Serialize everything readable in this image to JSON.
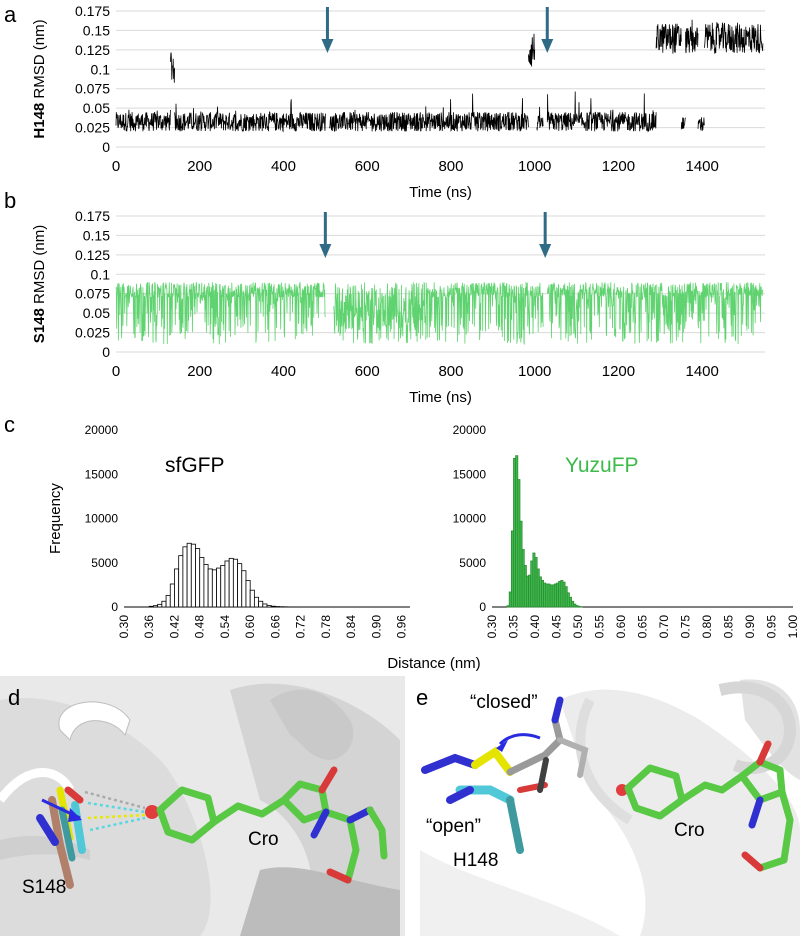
{
  "panels": {
    "a": {
      "letter": "a"
    },
    "b": {
      "letter": "b"
    },
    "c": {
      "letter": "c"
    },
    "d": {
      "letter": "d",
      "labels": {
        "s148": "S148",
        "cro": "Cro"
      }
    },
    "e": {
      "letter": "e",
      "labels": {
        "closed": "“closed”",
        "open": "“open”",
        "h148": "H148",
        "cro": "Cro"
      }
    }
  },
  "colors": {
    "h148_trace": "#000000",
    "s148_trace": "#5fd36f",
    "yuzufp": "#3dbb4a",
    "arrow": "#2f6b87",
    "grid": "#d9d9d9"
  },
  "chart_data": [
    {
      "type": "line",
      "panel": "a",
      "ylabel_bold": "H148",
      "ylabel_rest": " RMSD (nm)",
      "xlabel": "Time (ns)",
      "xlim": [
        0,
        1550
      ],
      "ylim": [
        0,
        0.175
      ],
      "xticks": [
        "0",
        "200",
        "400",
        "600",
        "800",
        "1000",
        "1200",
        "1400"
      ],
      "yticks": [
        "0",
        "0.025",
        "0.05",
        "0.075",
        "0.1",
        "0.125",
        "0.15",
        "0.175"
      ],
      "grid": "horizontal",
      "arrows_x": [
        505,
        1030
      ],
      "series": [
        {
          "color": "#000000",
          "segments": [
            {
              "x": [
                0,
                130
              ],
              "base": 0.02,
              "high": 0.045
            },
            {
              "x": [
                130,
                140
              ],
              "base": 0.08,
              "high": 0.13
            },
            {
              "x": [
                140,
                500
              ],
              "base": 0.02,
              "high": 0.045
            },
            {
              "x": [
                510,
                985
              ],
              "base": 0.02,
              "high": 0.045
            },
            {
              "x": [
                985,
                1000
              ],
              "base": 0.1,
              "high": 0.15
            },
            {
              "x": [
                1005,
                1020
              ],
              "base": 0.02,
              "high": 0.04
            },
            {
              "x": [
                1030,
                1290
              ],
              "base": 0.02,
              "high": 0.045
            },
            {
              "x": [
                1290,
                1350
              ],
              "base": 0.12,
              "high": 0.16
            },
            {
              "x": [
                1350,
                1360
              ],
              "base": 0.02,
              "high": 0.04
            },
            {
              "x": [
                1360,
                1390
              ],
              "base": 0.12,
              "high": 0.155
            },
            {
              "x": [
                1390,
                1405
              ],
              "base": 0.02,
              "high": 0.04
            },
            {
              "x": [
                1405,
                1545
              ],
              "base": 0.12,
              "high": 0.16
            }
          ]
        }
      ]
    },
    {
      "type": "line",
      "panel": "b",
      "ylabel_bold": "S148",
      "ylabel_rest": " RMSD (nm)",
      "xlabel": "Time (ns)",
      "xlim": [
        0,
        1550
      ],
      "ylim": [
        0,
        0.175
      ],
      "xticks": [
        "0",
        "200",
        "400",
        "600",
        "800",
        "1000",
        "1200",
        "1400"
      ],
      "yticks": [
        "0",
        "0.025",
        "0.05",
        "0.075",
        "0.1",
        "0.125",
        "0.15",
        "0.175"
      ],
      "grid": "horizontal",
      "arrows_x": [
        500,
        1025
      ],
      "series": [
        {
          "color": "#5fd36f",
          "segments": [
            {
              "x": [
                0,
                500
              ],
              "base": 0.075,
              "low": 0.01,
              "high": 0.09
            },
            {
              "x": [
                520,
                740
              ],
              "base": 0.05,
              "low": 0.01,
              "high": 0.09
            },
            {
              "x": [
                740,
                1020
              ],
              "base": 0.075,
              "low": 0.01,
              "high": 0.09
            },
            {
              "x": [
                1030,
                1545
              ],
              "base": 0.075,
              "low": 0.01,
              "high": 0.09
            }
          ]
        }
      ]
    },
    {
      "type": "bar",
      "panel": "c-left",
      "title": "sfGFP",
      "ylabel": "Frequency",
      "xlim": [
        0.3,
        0.98
      ],
      "ylim": [
        0,
        20000
      ],
      "yticks": [
        "0",
        "5000",
        "10000",
        "15000",
        "20000"
      ],
      "xticks": [
        "0.30",
        "0.36",
        "0.42",
        "0.48",
        "0.54",
        "0.60",
        "0.66",
        "0.72",
        "0.78",
        "0.84",
        "0.90",
        "0.96"
      ],
      "bin_width": 0.01,
      "bins_start": 0.36,
      "values": [
        80,
        150,
        300,
        650,
        1300,
        2600,
        4300,
        5800,
        6800,
        7200,
        7100,
        6600,
        5600,
        4800,
        4300,
        4200,
        4400,
        4700,
        5200,
        5500,
        5400,
        4900,
        4100,
        3000,
        1900,
        1100,
        650,
        340,
        170,
        90,
        50,
        30,
        20
      ],
      "fill": "#ffffff",
      "stroke": "#000000"
    },
    {
      "type": "bar",
      "panel": "c-right",
      "title": "YuzuFP",
      "ylim": [
        0,
        20000
      ],
      "xlim": [
        0.3,
        1.0
      ],
      "yticks": [
        "0",
        "5000",
        "10000",
        "15000",
        "20000"
      ],
      "xticks": [
        "0.30",
        "0.35",
        "0.40",
        "0.45",
        "0.50",
        "0.55",
        "0.60",
        "0.65",
        "0.70",
        "0.75",
        "0.80",
        "0.85",
        "0.90",
        "0.95",
        "1.00"
      ],
      "bin_width": 0.005,
      "bins_start": 0.335,
      "values": [
        150,
        1700,
        8600,
        16800,
        17100,
        14400,
        9700,
        6500,
        4700,
        3500,
        3600,
        5200,
        6100,
        5600,
        4300,
        3400,
        3000,
        2700,
        2600,
        2600,
        2500,
        2500,
        2600,
        2700,
        2900,
        3000,
        2800,
        2300,
        1600,
        1100,
        650,
        330,
        170,
        80,
        40
      ],
      "fill": "#3dbb4a",
      "stroke": "#2d8d36"
    }
  ],
  "xlabel_c": "Distance (nm)"
}
